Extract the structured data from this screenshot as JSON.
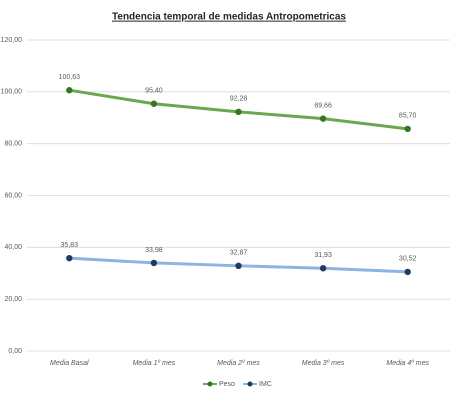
{
  "chart_data": {
    "type": "line",
    "title": "Tendencia temporal de medidas Antropometricas",
    "categories": [
      "Media Basal",
      "Media 1º mes",
      "Media 2º mes",
      "Media 3º mes",
      "Media 4º mes"
    ],
    "series": [
      {
        "name": "Peso",
        "color": "#6aa84f",
        "marker_color": "#38761d",
        "values": [
          100.63,
          95.4,
          92.28,
          89.66,
          85.7
        ],
        "value_labels": [
          "100,63",
          "95,40",
          "92,28",
          "89,66",
          "85,70"
        ]
      },
      {
        "name": "IMC",
        "color": "#8db4e2",
        "marker_color": "#1f3864",
        "values": [
          35.83,
          33.98,
          32.87,
          31.93,
          30.52
        ],
        "value_labels": [
          "35,83",
          "33,98",
          "32,87",
          "31,93",
          "30,52"
        ]
      }
    ],
    "ylim": [
      0,
      120
    ],
    "yticks": [
      {
        "value": 0,
        "label": "0,00"
      },
      {
        "value": 20,
        "label": "20,00"
      },
      {
        "value": 40,
        "label": "40,00"
      },
      {
        "value": 60,
        "label": "60,00"
      },
      {
        "value": 80,
        "label": "80,00"
      },
      {
        "value": 100,
        "label": "100,00"
      },
      {
        "value": 120,
        "label": "120,00"
      }
    ],
    "grid": true,
    "legend": "bottom"
  }
}
